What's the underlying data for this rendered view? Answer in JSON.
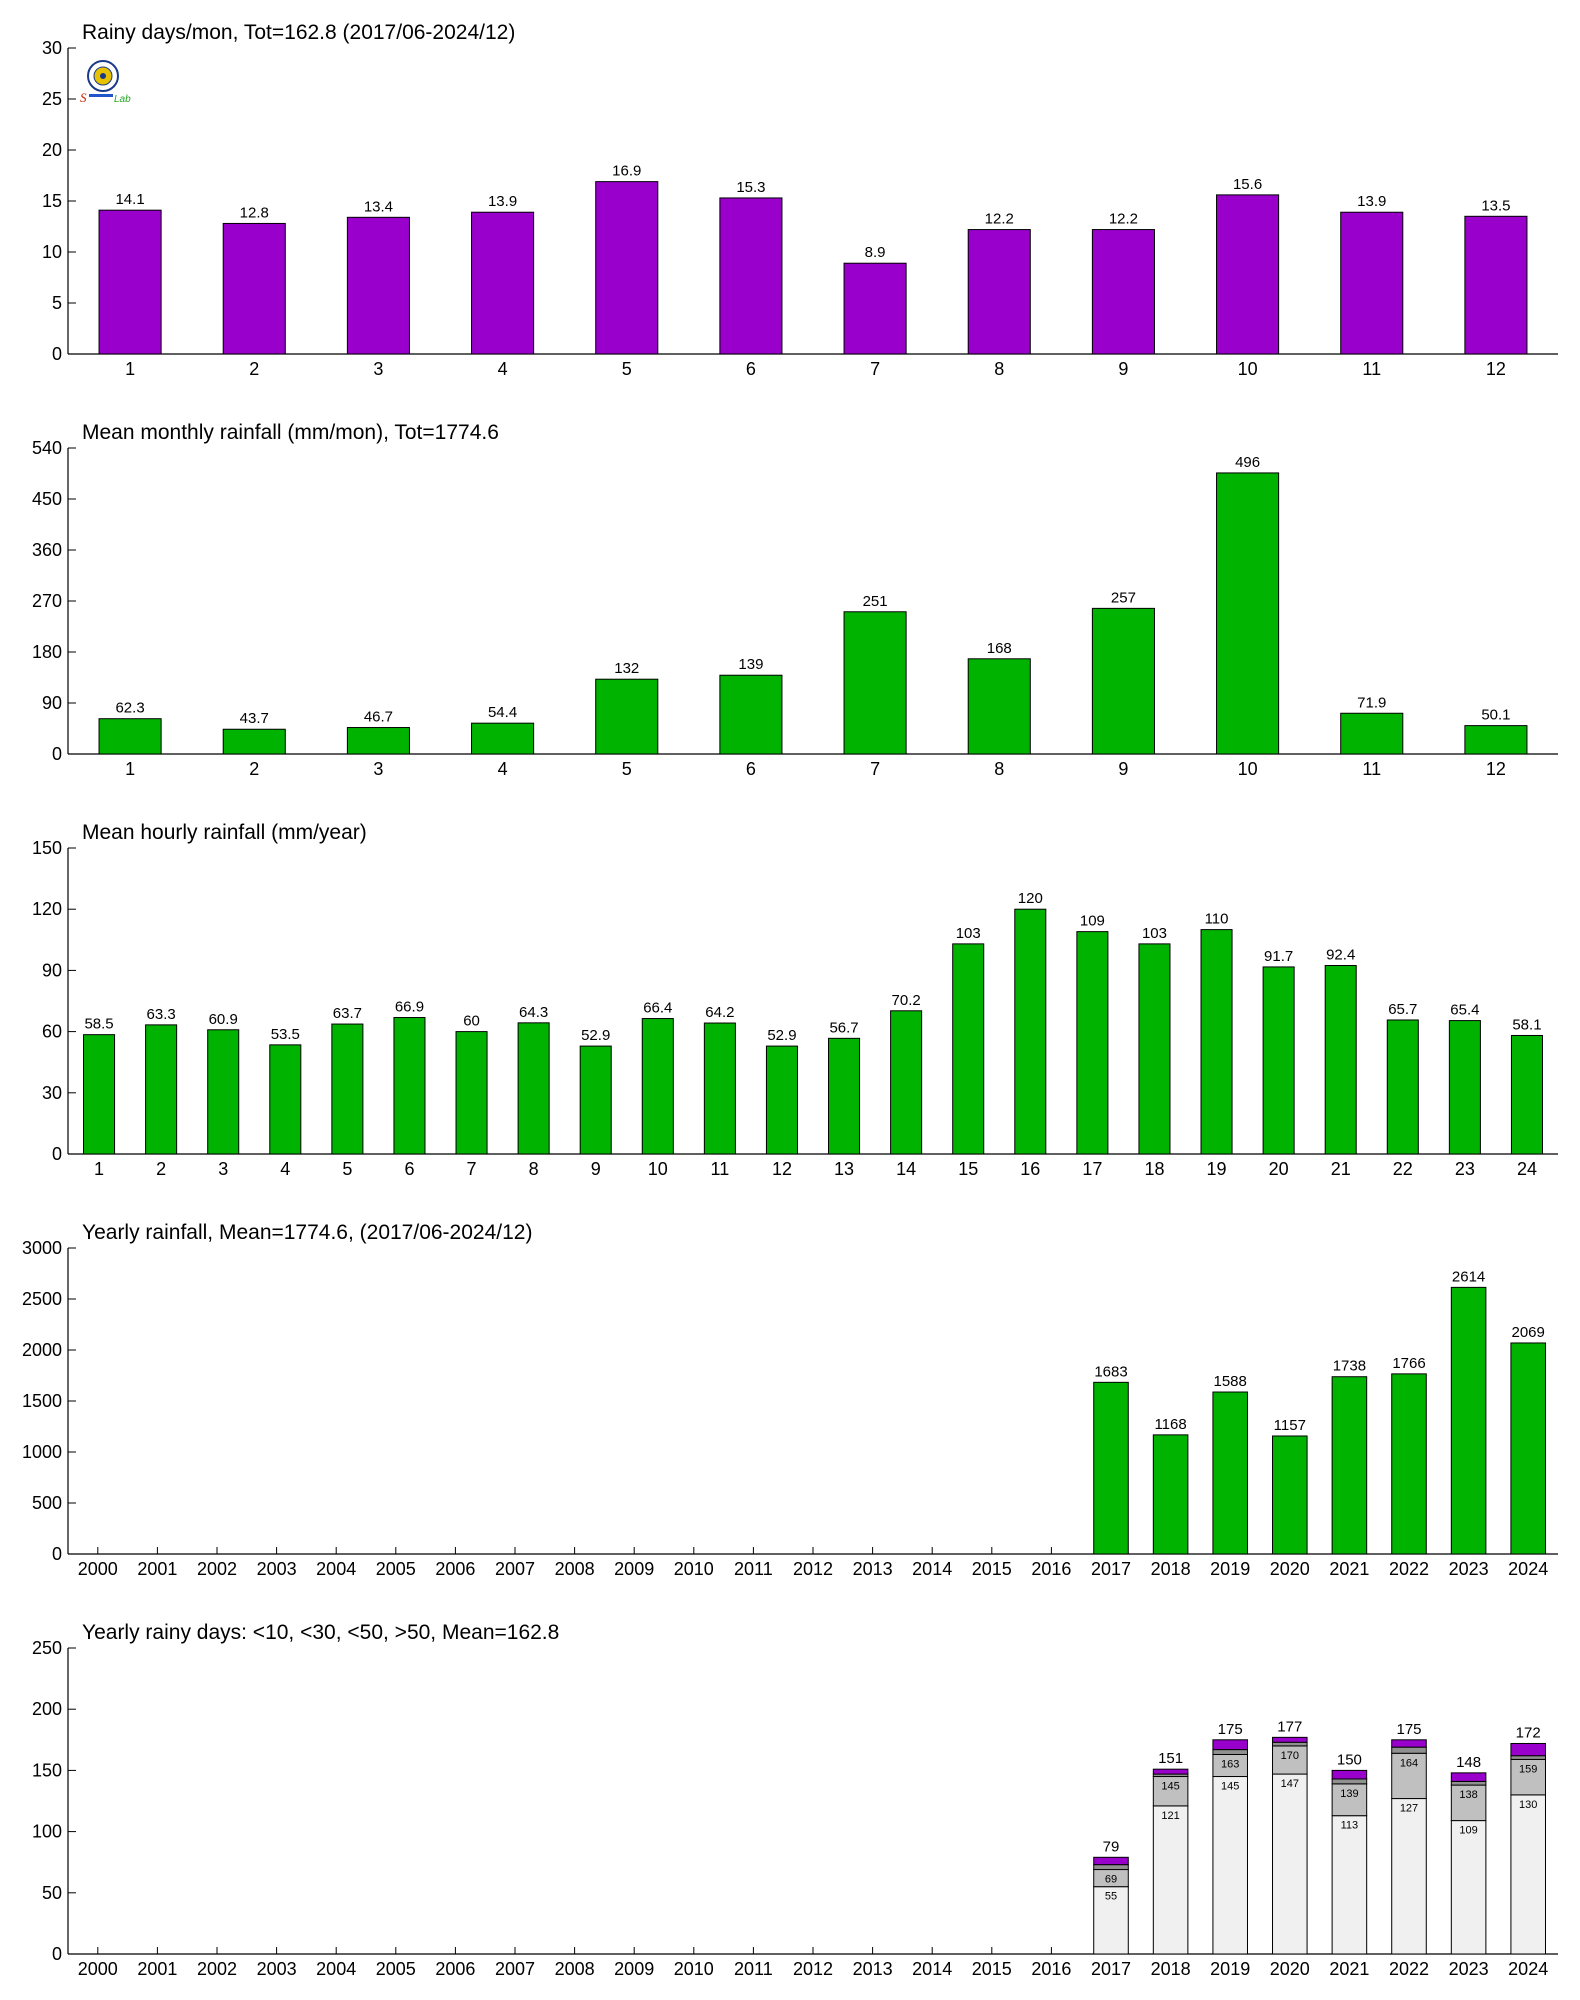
{
  "logo": {
    "text_top": "S",
    "text_mid": "Lab"
  },
  "chart_data": [
    {
      "type": "bar",
      "title": "Rainy days/mon, Tot=162.8 (2017/06-2024/12)",
      "categories": [
        "1",
        "2",
        "3",
        "4",
        "5",
        "6",
        "7",
        "8",
        "9",
        "10",
        "11",
        "12"
      ],
      "values": [
        14.1,
        12.8,
        13.4,
        13.9,
        16.9,
        15.3,
        8.9,
        12.2,
        12.2,
        15.6,
        13.9,
        13.5
      ],
      "labels": [
        "14.1",
        "12.8",
        "13.4",
        "13.9",
        "16.9",
        "15.3",
        "8.9",
        "12.2",
        "12.2",
        "15.6",
        "13.9",
        "13.5"
      ],
      "ylim": [
        0,
        30
      ],
      "yticks": [
        0,
        5,
        10,
        15,
        20,
        25,
        30
      ],
      "color": "#9900cc"
    },
    {
      "type": "bar",
      "title": "Mean monthly rainfall (mm/mon), Tot=1774.6",
      "categories": [
        "1",
        "2",
        "3",
        "4",
        "5",
        "6",
        "7",
        "8",
        "9",
        "10",
        "11",
        "12"
      ],
      "values": [
        62.3,
        43.7,
        46.7,
        54.4,
        132,
        139,
        251,
        168,
        257,
        496,
        71.9,
        50.1
      ],
      "labels": [
        "62.3",
        "43.7",
        "46.7",
        "54.4",
        "132",
        "139",
        "251",
        "168",
        "257",
        "496",
        "71.9",
        "50.1"
      ],
      "ylim": [
        0,
        540
      ],
      "yticks": [
        0,
        90,
        180,
        270,
        360,
        450,
        540
      ],
      "color": "#00b300"
    },
    {
      "type": "bar",
      "title": "Mean hourly rainfall (mm/year)",
      "categories": [
        "1",
        "2",
        "3",
        "4",
        "5",
        "6",
        "7",
        "8",
        "9",
        "10",
        "11",
        "12",
        "13",
        "14",
        "15",
        "16",
        "17",
        "18",
        "19",
        "20",
        "21",
        "22",
        "23",
        "24"
      ],
      "values": [
        58.5,
        63.3,
        60.9,
        53.5,
        63.7,
        66.9,
        60,
        64.3,
        52.9,
        66.4,
        64.2,
        52.9,
        56.7,
        70.2,
        103,
        120,
        109,
        103,
        110,
        91.7,
        92.4,
        65.7,
        65.4,
        58.1
      ],
      "labels": [
        "58.5",
        "63.3",
        "60.9",
        "53.5",
        "63.7",
        "66.9",
        "60",
        "64.3",
        "52.9",
        "66.4",
        "64.2",
        "52.9",
        "56.7",
        "70.2",
        "103",
        "120",
        "109",
        "103",
        "110",
        "91.7",
        "92.4",
        "65.7",
        "65.4",
        "58.1"
      ],
      "ylim": [
        0,
        150
      ],
      "yticks": [
        0,
        30,
        60,
        90,
        120,
        150
      ],
      "color": "#00b300"
    },
    {
      "type": "bar",
      "title": "Yearly rainfall, Mean=1774.6, (2017/06-2024/12)",
      "categories": [
        "2000",
        "2001",
        "2002",
        "2003",
        "2004",
        "2005",
        "2006",
        "2007",
        "2008",
        "2009",
        "2010",
        "2011",
        "2012",
        "2013",
        "2014",
        "2015",
        "2016",
        "2017",
        "2018",
        "2019",
        "2020",
        "2021",
        "2022",
        "2023",
        "2024"
      ],
      "values": [
        null,
        null,
        null,
        null,
        null,
        null,
        null,
        null,
        null,
        null,
        null,
        null,
        null,
        null,
        null,
        null,
        null,
        1683,
        1168,
        1588,
        1157,
        1738,
        1766,
        2614,
        2069
      ],
      "labels": [
        "",
        "",
        "",
        "",
        "",
        "",
        "",
        "",
        "",
        "",
        "",
        "",
        "",
        "",
        "",
        "",
        "",
        "1683",
        "1168",
        "1588",
        "1157",
        "1738",
        "1766",
        "2614",
        "2069"
      ],
      "ylim": [
        0,
        3000
      ],
      "yticks": [
        0,
        500,
        1000,
        1500,
        2000,
        2500,
        3000
      ],
      "color": "#00b300"
    },
    {
      "type": "bar",
      "stacked": true,
      "title": "Yearly rainy days: <10, <30, <50, >50, Mean=162.8",
      "categories": [
        "2000",
        "2001",
        "2002",
        "2003",
        "2004",
        "2005",
        "2006",
        "2007",
        "2008",
        "2009",
        "2010",
        "2011",
        "2012",
        "2013",
        "2014",
        "2015",
        "2016",
        "2017",
        "2018",
        "2019",
        "2020",
        "2021",
        "2022",
        "2023",
        "2024"
      ],
      "cumulative": {
        "lt10": [
          null,
          null,
          null,
          null,
          null,
          null,
          null,
          null,
          null,
          null,
          null,
          null,
          null,
          null,
          null,
          null,
          null,
          55,
          121,
          145,
          147,
          113,
          127,
          109,
          130
        ],
        "lt30": [
          null,
          null,
          null,
          null,
          null,
          null,
          null,
          null,
          null,
          null,
          null,
          null,
          null,
          null,
          null,
          null,
          null,
          69,
          145,
          163,
          170,
          139,
          164,
          138,
          159
        ],
        "lt50": [
          null,
          null,
          null,
          null,
          null,
          null,
          null,
          null,
          null,
          null,
          null,
          null,
          null,
          null,
          null,
          null,
          null,
          73,
          147,
          167,
          173,
          143,
          169,
          141,
          162
        ],
        "total": [
          null,
          null,
          null,
          null,
          null,
          null,
          null,
          null,
          null,
          null,
          null,
          null,
          null,
          null,
          null,
          null,
          null,
          79,
          151,
          175,
          177,
          150,
          175,
          148,
          172
        ]
      },
      "lt10_labels": [
        "",
        "",
        "",
        "",
        "",
        "",
        "",
        "",
        "",
        "",
        "",
        "",
        "",
        "",
        "",
        "",
        "",
        "55",
        "121",
        "145",
        "147",
        "113",
        "127",
        "109",
        "130"
      ],
      "lt30_labels": [
        "",
        "",
        "",
        "",
        "",
        "",
        "",
        "",
        "",
        "",
        "",
        "",
        "",
        "",
        "",
        "",
        "",
        "69",
        "145",
        "163",
        "170",
        "139",
        "164",
        "138",
        "159"
      ],
      "total_labels": [
        "",
        "",
        "",
        "",
        "",
        "",
        "",
        "",
        "",
        "",
        "",
        "",
        "",
        "",
        "",
        "",
        "",
        "79",
        "151",
        "175",
        "177",
        "150",
        "175",
        "148",
        "172"
      ],
      "ylim": [
        0,
        250
      ],
      "yticks": [
        0,
        50,
        100,
        150,
        200,
        250
      ],
      "colors": {
        "lt10": "#f0f0f0",
        "lt30": "#c0c0c0",
        "lt50": "#909090",
        "gt50": "#9900cc"
      }
    }
  ]
}
